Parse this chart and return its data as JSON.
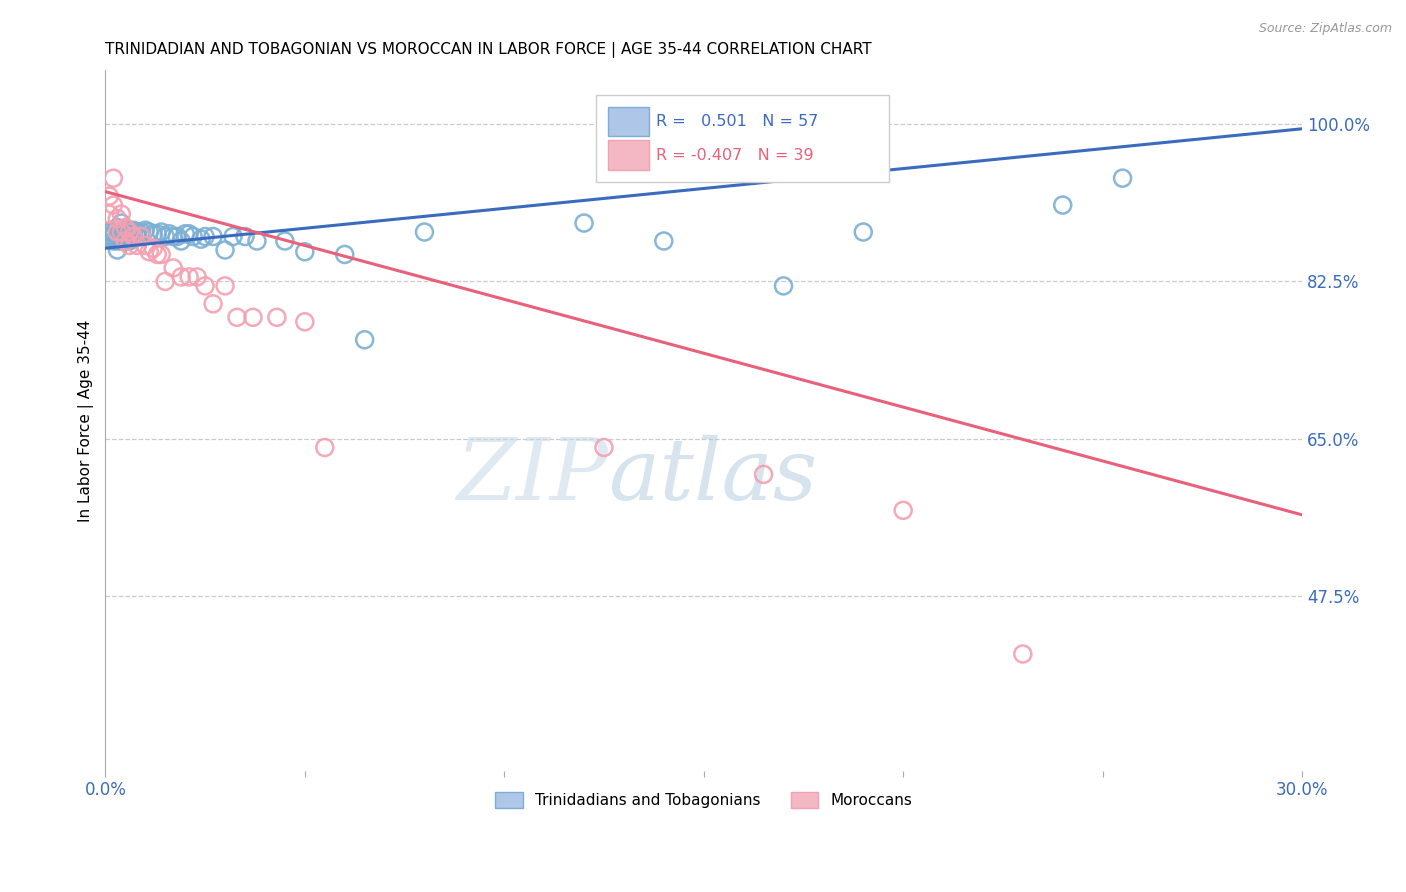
{
  "title": "TRINIDADIAN AND TOBAGONIAN VS MOROCCAN IN LABOR FORCE | AGE 35-44 CORRELATION CHART",
  "source": "Source: ZipAtlas.com",
  "ylabel": "In Labor Force | Age 35-44",
  "xlim": [
    0.0,
    0.3
  ],
  "ylim": [
    0.28,
    1.06
  ],
  "xticks": [
    0.0,
    0.05,
    0.1,
    0.15,
    0.2,
    0.25,
    0.3
  ],
  "xtick_labels": [
    "0.0%",
    "",
    "",
    "",
    "",
    "",
    "30.0%"
  ],
  "ytick_positions": [
    0.475,
    0.65,
    0.825,
    1.0
  ],
  "ytick_labels": [
    "47.5%",
    "65.0%",
    "82.5%",
    "100.0%"
  ],
  "blue_color": "#7bafd4",
  "pink_color": "#f4a0b0",
  "blue_line_color": "#3b6bbf",
  "pink_line_color": "#e8607a",
  "grid_color": "#cccccc",
  "axis_label_color": "#3b6bbf",
  "watermark_zip": "ZIP",
  "watermark_atlas": "atlas",
  "blue_scatter_x": [
    0.001,
    0.001,
    0.002,
    0.002,
    0.002,
    0.003,
    0.003,
    0.003,
    0.003,
    0.004,
    0.004,
    0.004,
    0.004,
    0.005,
    0.005,
    0.005,
    0.006,
    0.006,
    0.006,
    0.007,
    0.007,
    0.007,
    0.008,
    0.008,
    0.009,
    0.009,
    0.01,
    0.011,
    0.012,
    0.013,
    0.014,
    0.015,
    0.016,
    0.017,
    0.018,
    0.019,
    0.02,
    0.021,
    0.022,
    0.024,
    0.025,
    0.027,
    0.03,
    0.032,
    0.035,
    0.038,
    0.045,
    0.05,
    0.06,
    0.065,
    0.08,
    0.12,
    0.14,
    0.17,
    0.19,
    0.24,
    0.255
  ],
  "blue_scatter_y": [
    0.875,
    0.88,
    0.87,
    0.875,
    0.88,
    0.86,
    0.87,
    0.875,
    0.885,
    0.87,
    0.875,
    0.88,
    0.89,
    0.87,
    0.875,
    0.88,
    0.87,
    0.875,
    0.882,
    0.875,
    0.878,
    0.882,
    0.875,
    0.88,
    0.875,
    0.88,
    0.882,
    0.88,
    0.878,
    0.878,
    0.88,
    0.875,
    0.878,
    0.875,
    0.875,
    0.87,
    0.878,
    0.878,
    0.875,
    0.872,
    0.875,
    0.875,
    0.86,
    0.875,
    0.875,
    0.87,
    0.87,
    0.858,
    0.855,
    0.76,
    0.88,
    0.89,
    0.87,
    0.82,
    0.88,
    0.91,
    0.94
  ],
  "pink_scatter_x": [
    0.001,
    0.001,
    0.002,
    0.002,
    0.003,
    0.003,
    0.004,
    0.004,
    0.005,
    0.005,
    0.006,
    0.006,
    0.007,
    0.008,
    0.009,
    0.01,
    0.011,
    0.012,
    0.013,
    0.014,
    0.015,
    0.017,
    0.019,
    0.021,
    0.023,
    0.025,
    0.027,
    0.03,
    0.033,
    0.037,
    0.043,
    0.05,
    0.055,
    0.125,
    0.165,
    0.2,
    0.23
  ],
  "pink_scatter_y": [
    0.92,
    0.9,
    0.94,
    0.91,
    0.895,
    0.88,
    0.9,
    0.88,
    0.885,
    0.87,
    0.88,
    0.865,
    0.875,
    0.865,
    0.875,
    0.865,
    0.858,
    0.862,
    0.855,
    0.855,
    0.825,
    0.84,
    0.83,
    0.83,
    0.83,
    0.82,
    0.8,
    0.82,
    0.785,
    0.785,
    0.785,
    0.78,
    0.64,
    0.64,
    0.61,
    0.57,
    0.41
  ],
  "blue_line_x": [
    0.0,
    0.3
  ],
  "blue_line_y": [
    0.862,
    0.995
  ],
  "pink_line_x": [
    0.0,
    0.3
  ],
  "pink_line_y": [
    0.925,
    0.565
  ]
}
